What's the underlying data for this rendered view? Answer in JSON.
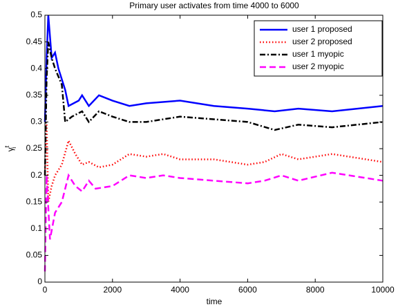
{
  "chart_data": {
    "type": "line",
    "title": "Primary user activates from time 4000 to 6000",
    "xlabel": "time",
    "ylabel": {
      "base": "γ",
      "sub": "i",
      "sup": "t"
    },
    "xlim": [
      0,
      10000
    ],
    "xticks": [
      0,
      2000,
      4000,
      6000,
      8000,
      10000
    ],
    "ylim": [
      0,
      0.5
    ],
    "yticks": [
      0,
      0.05,
      0.1,
      0.15,
      0.2,
      0.25,
      0.3,
      0.35,
      0.4,
      0.45,
      0.5
    ],
    "grid": false,
    "legend": "top-right",
    "series": [
      {
        "name": "user 1 proposed",
        "color": "#0000ff",
        "linestyle": "-",
        "x": [
          0,
          50,
          100,
          200,
          300,
          400,
          500,
          600,
          700,
          1000,
          1100,
          1300,
          1600,
          2000,
          2500,
          3000,
          4000,
          5000,
          6000,
          6800,
          7500,
          8500,
          10000
        ],
        "values": [
          0.3,
          0.42,
          0.5,
          0.42,
          0.43,
          0.4,
          0.38,
          0.36,
          0.33,
          0.34,
          0.35,
          0.33,
          0.35,
          0.34,
          0.33,
          0.335,
          0.34,
          0.33,
          0.325,
          0.32,
          0.325,
          0.32,
          0.33
        ]
      },
      {
        "name": "user 2 proposed",
        "color": "#ff0000",
        "linestyle": ":",
        "x": [
          0,
          50,
          100,
          200,
          300,
          500,
          700,
          900,
          1100,
          1300,
          1600,
          2000,
          2500,
          3000,
          3500,
          4000,
          5000,
          6000,
          6500,
          7000,
          7500,
          8500,
          10000
        ],
        "values": [
          0.2,
          0.3,
          0.15,
          0.18,
          0.2,
          0.22,
          0.265,
          0.24,
          0.22,
          0.225,
          0.215,
          0.22,
          0.24,
          0.235,
          0.24,
          0.23,
          0.23,
          0.22,
          0.225,
          0.24,
          0.23,
          0.24,
          0.225
        ]
      },
      {
        "name": "user 1 myopic",
        "color": "#000000",
        "linestyle": "-.",
        "x": [
          0,
          50,
          100,
          200,
          300,
          500,
          600,
          800,
          1100,
          1300,
          1600,
          2000,
          2500,
          3000,
          4000,
          5000,
          6000,
          6800,
          7500,
          8500,
          10000
        ],
        "values": [
          0.2,
          0.38,
          0.45,
          0.42,
          0.4,
          0.37,
          0.3,
          0.31,
          0.32,
          0.3,
          0.32,
          0.31,
          0.3,
          0.3,
          0.31,
          0.305,
          0.3,
          0.285,
          0.295,
          0.29,
          0.3
        ]
      },
      {
        "name": "user 2 myopic",
        "color": "#ff00ff",
        "linestyle": "--",
        "x": [
          0,
          50,
          150,
          300,
          500,
          700,
          900,
          1100,
          1300,
          1500,
          2000,
          2500,
          3000,
          3500,
          4000,
          5000,
          6000,
          6500,
          7000,
          7500,
          8500,
          10000
        ],
        "values": [
          0.02,
          0.2,
          0.08,
          0.13,
          0.15,
          0.2,
          0.18,
          0.17,
          0.19,
          0.175,
          0.18,
          0.2,
          0.195,
          0.2,
          0.195,
          0.19,
          0.185,
          0.19,
          0.2,
          0.19,
          0.205,
          0.19
        ]
      }
    ]
  }
}
